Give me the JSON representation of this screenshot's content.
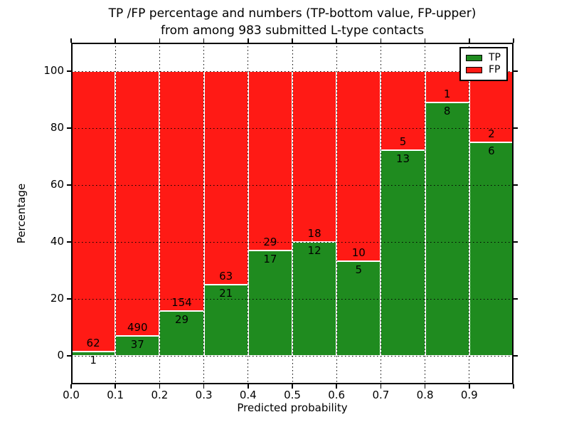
{
  "figure": {
    "title_line1": "TP /FP percentage and numbers (TP-bottom value, FP-upper)",
    "title_line2": "from among 983 submitted L-type contacts"
  },
  "chart_data": {
    "type": "bar",
    "subtype": "stacked-percentage",
    "title": "TP /FP percentage and numbers (TP-bottom value, FP-upper)\nfrom among 983 submitted L-type contacts",
    "xlabel": "Predicted probability",
    "ylabel": "Percentage",
    "total_contacts": 983,
    "categories": [
      "0.0-0.1",
      "0.1-0.2",
      "0.2-0.3",
      "0.3-0.4",
      "0.4-0.5",
      "0.5-0.6",
      "0.6-0.7",
      "0.7-0.8",
      "0.8-0.9",
      "0.9-1.0"
    ],
    "series": [
      {
        "name": "TP",
        "color": "#1f8b1f",
        "counts": [
          1,
          37,
          29,
          21,
          17,
          12,
          5,
          13,
          8,
          6
        ]
      },
      {
        "name": "FP",
        "color": "#ff1a15",
        "counts": [
          62,
          490,
          154,
          63,
          29,
          18,
          10,
          5,
          1,
          2
        ]
      }
    ],
    "tp_percentages": [
      1.59,
      7.02,
      15.85,
      25.0,
      36.96,
      40.0,
      33.33,
      72.22,
      88.89,
      75.0
    ],
    "bar_total_percentage": 100,
    "xticks": [
      "0.0",
      "0.1",
      "0.2",
      "0.3",
      "0.4",
      "0.5",
      "0.6",
      "0.7",
      "0.8",
      "0.9"
    ],
    "yticks": [
      0,
      20,
      40,
      60,
      80,
      100
    ],
    "xlim": [
      0.0,
      1.0
    ],
    "ylim": [
      -10,
      110
    ],
    "grid": true,
    "grid_style": "dotted",
    "legend": {
      "position": "upper-right",
      "entries": [
        "TP",
        "FP"
      ]
    }
  }
}
